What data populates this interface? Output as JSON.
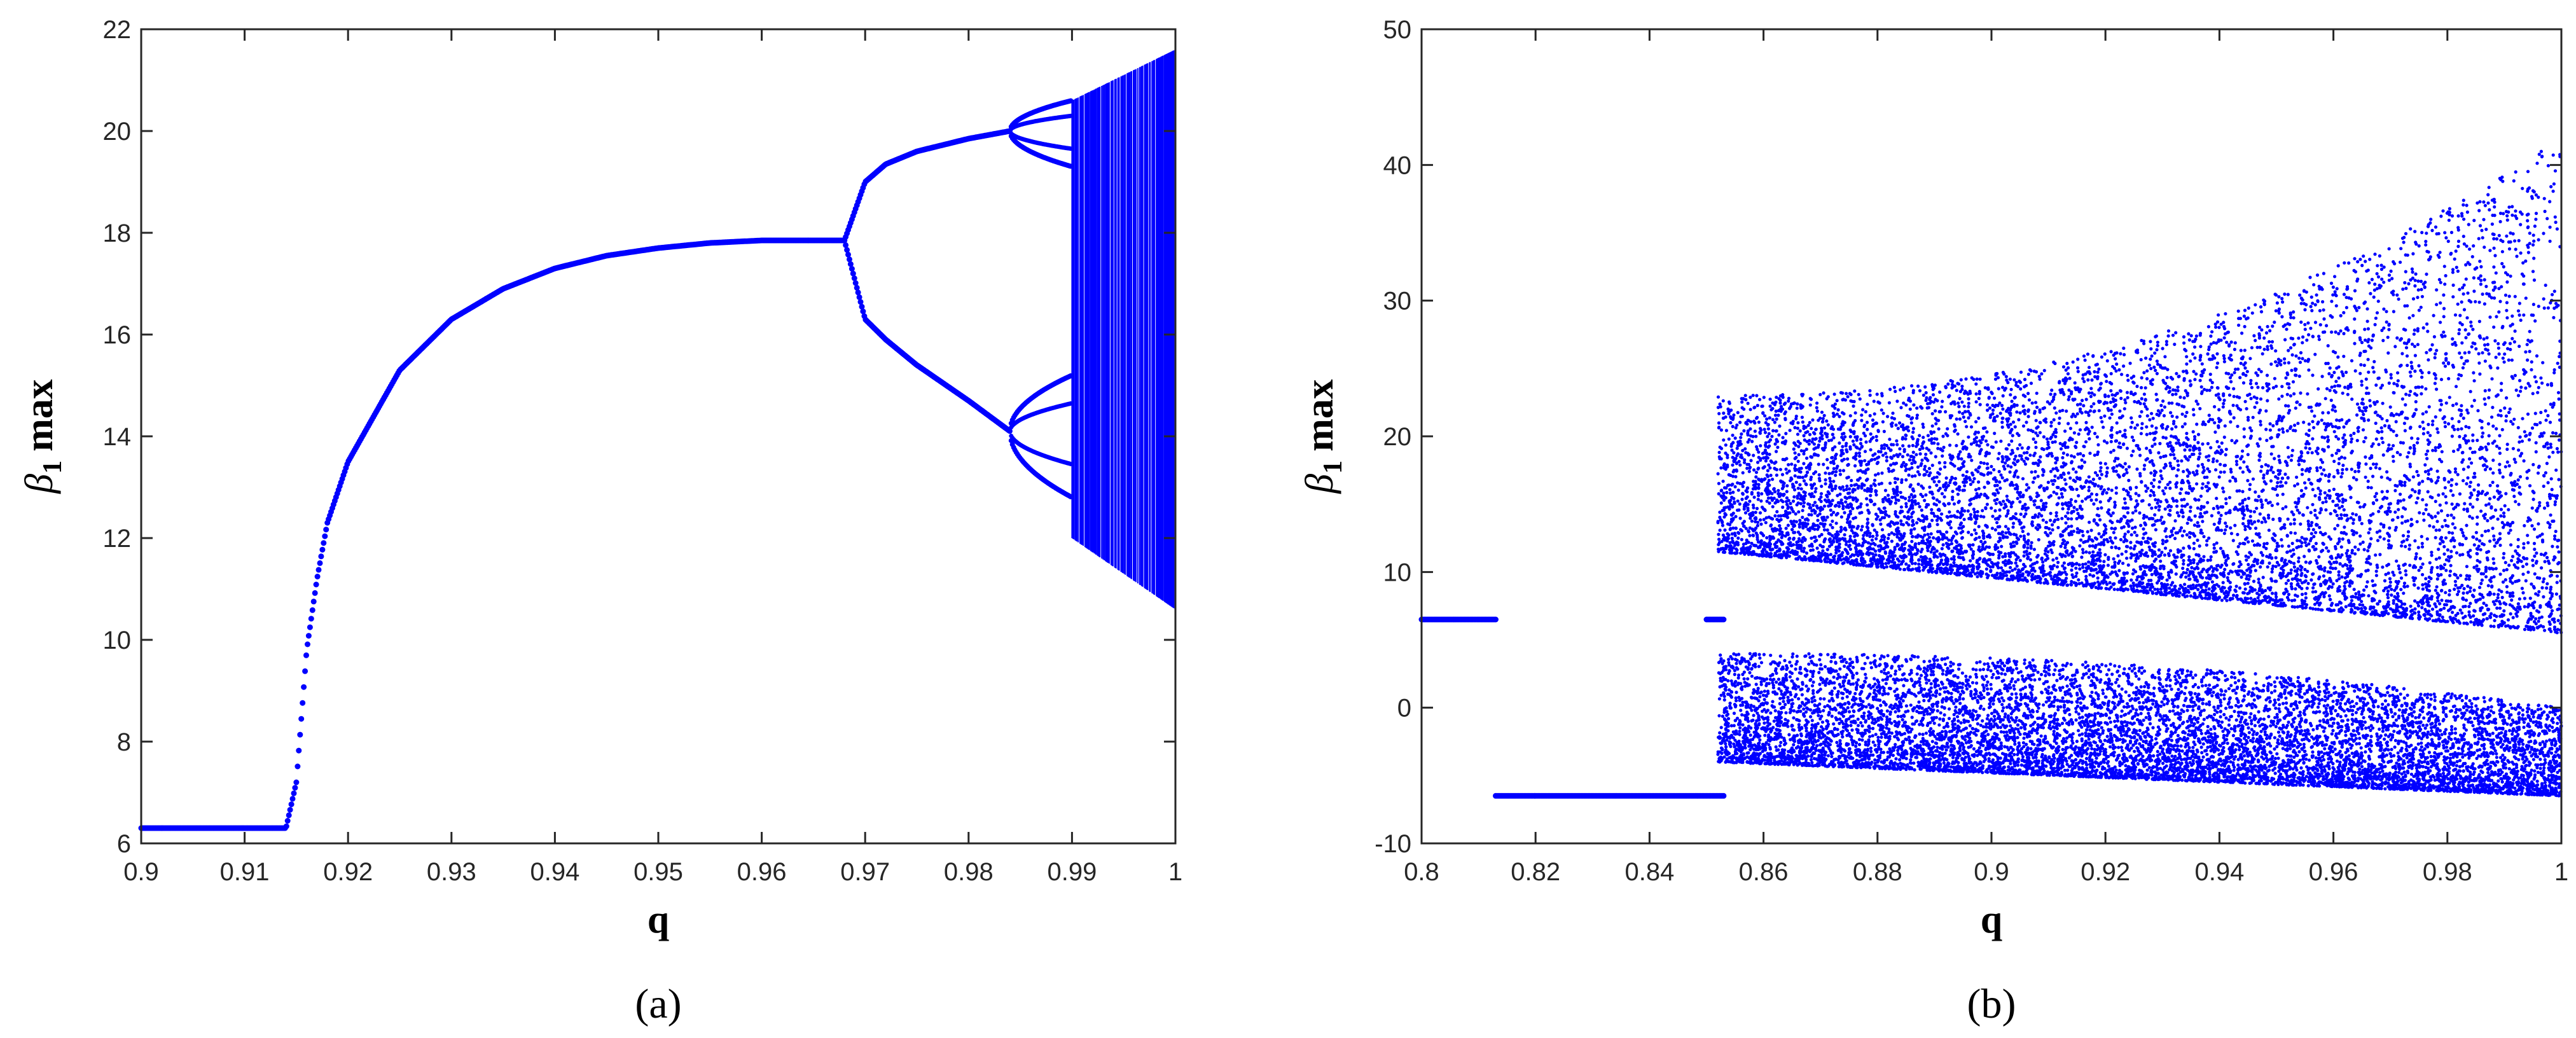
{
  "chart_data": [
    {
      "type": "scatter",
      "panel_label": "(a)",
      "xlabel": "q",
      "ylabel_symbol": "β",
      "ylabel_subscript": "1",
      "ylabel_suffix": "max",
      "xlim": [
        0.9,
        1.0
      ],
      "ylim": [
        6,
        22
      ],
      "xticks": [
        0.9,
        0.91,
        0.92,
        0.93,
        0.94,
        0.95,
        0.96,
        0.97,
        0.98,
        0.99,
        1
      ],
      "xtick_labels": [
        "0.9",
        "0.91",
        "0.92",
        "0.93",
        "0.94",
        "0.95",
        "0.96",
        "0.97",
        "0.98",
        "0.99",
        "1"
      ],
      "yticks": [
        6,
        8,
        10,
        12,
        14,
        16,
        18,
        20,
        22
      ],
      "ytick_labels": [
        "6",
        "8",
        "10",
        "12",
        "14",
        "16",
        "18",
        "20",
        "22"
      ],
      "marker_color": "#0000ff",
      "series": [
        {
          "values_description_free": true,
          "x": [
            0.9,
            0.905,
            0.91,
            0.914,
            0.915,
            0.9155,
            0.916,
            0.917,
            0.918,
            0.92,
            0.925,
            0.93,
            0.935,
            0.94,
            0.945,
            0.95,
            0.955,
            0.96,
            0.965,
            0.968
          ],
          "y": [
            6.3,
            6.3,
            6.3,
            6.3,
            7.2,
            8.5,
            9.8,
            11.2,
            12.3,
            13.5,
            15.3,
            16.3,
            16.9,
            17.3,
            17.55,
            17.7,
            17.8,
            17.85,
            17.85,
            17.85
          ]
        },
        {
          "x": [
            0.968,
            0.97,
            0.972,
            0.975,
            0.98,
            0.984
          ],
          "y": [
            17.85,
            19.0,
            19.35,
            19.6,
            19.85,
            20.0
          ]
        },
        {
          "x": [
            0.968,
            0.97,
            0.972,
            0.975,
            0.98,
            0.984
          ],
          "y": [
            17.85,
            16.3,
            15.9,
            15.4,
            14.7,
            14.1
          ]
        }
      ],
      "period_doubling_ranges": {
        "upper_branch": {
          "x": [
            0.984,
            0.99
          ],
          "center": 20.0,
          "spread": [
            19.3,
            20.6
          ]
        },
        "lower_branch": {
          "x": [
            0.984,
            0.99
          ],
          "center": 14.1,
          "spread": [
            12.8,
            15.2
          ]
        }
      },
      "chaotic_band": {
        "x": [
          0.99,
          1.0
        ],
        "ymin_start": 12.0,
        "ymax_start": 20.6,
        "ymin_end": 10.6,
        "ymax_end": 21.6
      }
    },
    {
      "type": "scatter",
      "panel_label": "(b)",
      "xlabel": "q",
      "ylabel_symbol": "β",
      "ylabel_subscript": "1",
      "ylabel_suffix": "max",
      "xlim": [
        0.8,
        1.0
      ],
      "ylim": [
        -10,
        50
      ],
      "xticks": [
        0.8,
        0.82,
        0.84,
        0.86,
        0.88,
        0.9,
        0.92,
        0.94,
        0.96,
        0.98,
        1
      ],
      "xtick_labels": [
        "0.8",
        "0.82",
        "0.84",
        "0.86",
        "0.88",
        "0.9",
        "0.92",
        "0.94",
        "0.96",
        "0.98",
        "1"
      ],
      "yticks": [
        -10,
        0,
        10,
        20,
        30,
        40,
        50
      ],
      "ytick_labels": [
        "-10",
        "0",
        "10",
        "20",
        "30",
        "40",
        "50"
      ],
      "marker_color": "#0000ff",
      "series": [
        {
          "x": [
            0.8,
            0.813
          ],
          "y": [
            6.5,
            6.5
          ]
        },
        {
          "x": [
            0.813,
            0.853
          ],
          "y": [
            -6.5,
            -6.5
          ]
        },
        {
          "x": [
            0.85,
            0.853
          ],
          "y": [
            6.5,
            6.5
          ]
        }
      ],
      "chaotic_bands": {
        "x_start": 0.852,
        "x_end": 1.0,
        "upper_band": {
          "ymin_start": 11.5,
          "ymax_start": 23.0,
          "ymin_end": 5.5,
          "ymax_end": 42.0
        },
        "lower_band": {
          "ymin_start": -4.0,
          "ymax_start": 4.0,
          "ymin_end": -6.5,
          "ymax_end": 0.0
        }
      }
    }
  ]
}
